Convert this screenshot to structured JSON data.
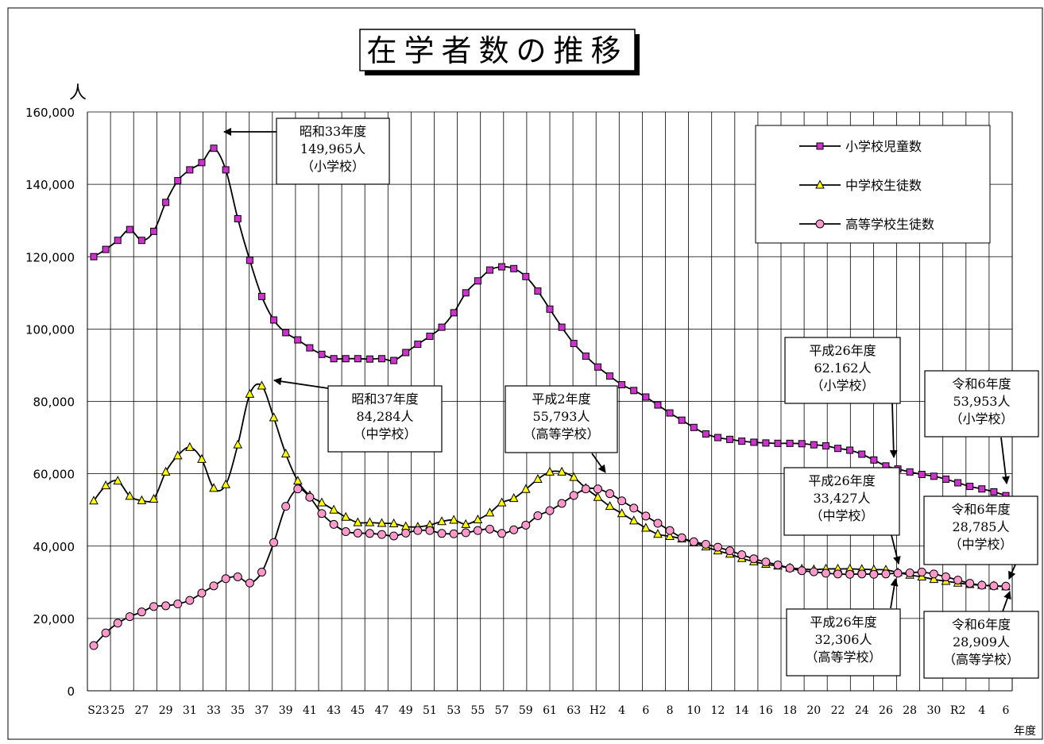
{
  "chart_data": {
    "type": "line",
    "title": "在学者数の推移",
    "ylabel": "人",
    "xlabel": "年度",
    "ylim": [
      0,
      160000
    ],
    "y_ticks": [
      0,
      20000,
      40000,
      60000,
      80000,
      100000,
      120000,
      140000,
      160000
    ],
    "y_tick_labels": [
      "0",
      "20,000",
      "40,000",
      "60,000",
      "80,000",
      "100,000",
      "120,000",
      "140,000",
      "160,000"
    ],
    "grid": true,
    "legend_position": "top-right",
    "x_tick_labels": [
      "S23",
      "25",
      "27",
      "29",
      "31",
      "33",
      "35",
      "37",
      "39",
      "41",
      "43",
      "45",
      "47",
      "49",
      "51",
      "53",
      "55",
      "57",
      "59",
      "61",
      "63",
      "H2",
      "4",
      "6",
      "8",
      "10",
      "12",
      "14",
      "16",
      "18",
      "20",
      "22",
      "24",
      "26",
      "28",
      "30",
      "R2",
      "4",
      "6"
    ],
    "x": [
      "S23",
      "S24",
      "S25",
      "S26",
      "S27",
      "S28",
      "S29",
      "S30",
      "S31",
      "S32",
      "S33",
      "S34",
      "S35",
      "S36",
      "S37",
      "S38",
      "S39",
      "S40",
      "S41",
      "S42",
      "S43",
      "S44",
      "S45",
      "S46",
      "S47",
      "S48",
      "S49",
      "S50",
      "S51",
      "S52",
      "S53",
      "S54",
      "S55",
      "S56",
      "S57",
      "S58",
      "S59",
      "S60",
      "S61",
      "S62",
      "S63",
      "H1",
      "H2",
      "H3",
      "H4",
      "H5",
      "H6",
      "H7",
      "H8",
      "H9",
      "H10",
      "H11",
      "H12",
      "H13",
      "H14",
      "H15",
      "H16",
      "H17",
      "H18",
      "H19",
      "H20",
      "H21",
      "H22",
      "H23",
      "H24",
      "H25",
      "H26",
      "H27",
      "H28",
      "H29",
      "H30",
      "R1",
      "R2",
      "R3",
      "R4",
      "R5",
      "R6"
    ],
    "series": [
      {
        "name": "小学校児童数",
        "color": "#cc33cc",
        "marker": "square",
        "values": [
          120000,
          122000,
          124500,
          127500,
          124500,
          127000,
          135000,
          141000,
          144000,
          146000,
          149965,
          144000,
          130500,
          119000,
          109000,
          102500,
          99000,
          97000,
          94800,
          93000,
          91800,
          91800,
          91800,
          91700,
          91800,
          91300,
          93500,
          95800,
          98000,
          100500,
          104500,
          110000,
          113300,
          116300,
          117200,
          116700,
          114500,
          110500,
          105500,
          100500,
          96000,
          92500,
          89500,
          87000,
          84600,
          83000,
          81200,
          79000,
          76800,
          74800,
          72800,
          71000,
          70000,
          69500,
          69000,
          68700,
          68500,
          68400,
          68400,
          68300,
          68000,
          67700,
          67000,
          66500,
          65400,
          63800,
          62162,
          61300,
          60500,
          59800,
          59300,
          58500,
          57500,
          56500,
          55800,
          55000,
          53953
        ]
      },
      {
        "name": "中学校生徒数",
        "color": "#ffff00",
        "marker": "triangle",
        "values": [
          52500,
          56700,
          58000,
          53800,
          52600,
          53000,
          60500,
          65000,
          67300,
          64000,
          56000,
          57000,
          68000,
          82000,
          84284,
          75500,
          65500,
          58000,
          54000,
          52000,
          50000,
          48000,
          46500,
          46500,
          46300,
          46200,
          45400,
          45300,
          45800,
          46800,
          47200,
          46000,
          47300,
          49200,
          52000,
          53200,
          55700,
          58500,
          60500,
          60500,
          59000,
          56000,
          53500,
          51000,
          49000,
          47000,
          45000,
          43300,
          42700,
          42000,
          41000,
          39800,
          38700,
          37800,
          36600,
          35700,
          35000,
          34500,
          34000,
          33700,
          33500,
          33700,
          33700,
          33700,
          33600,
          33500,
          33427,
          32700,
          32000,
          31500,
          30800,
          30300,
          29800,
          29400,
          29200,
          29000,
          28785
        ]
      },
      {
        "name": "高等学校生徒数",
        "color": "#ff99cc",
        "marker": "circle",
        "values": [
          12500,
          16000,
          18700,
          20500,
          21800,
          23300,
          23500,
          24000,
          25000,
          27000,
          29000,
          31000,
          31500,
          29800,
          32800,
          41000,
          51000,
          55800,
          53500,
          49000,
          46000,
          44000,
          43600,
          43500,
          43200,
          42800,
          43600,
          44300,
          44300,
          43500,
          43400,
          43700,
          44300,
          44700,
          43500,
          44500,
          45800,
          48400,
          49800,
          51800,
          54000,
          55793,
          55793,
          54500,
          52500,
          50500,
          48300,
          46300,
          44300,
          42300,
          41200,
          40500,
          39700,
          38700,
          37600,
          36500,
          35600,
          34800,
          33900,
          33200,
          32900,
          32500,
          32300,
          32200,
          32300,
          32200,
          32306,
          32500,
          32600,
          32800,
          32300,
          31500,
          30600,
          29700,
          29200,
          29000,
          28909
        ]
      }
    ],
    "annotations": [
      {
        "line1": "昭和33年度",
        "line2": "149,965人",
        "line3": "（小学校）"
      },
      {
        "line1": "昭和37年度",
        "line2": "84,284人",
        "line3": "（中学校）"
      },
      {
        "line1": "平成2年度",
        "line2": "55,793人",
        "line3": "（高等学校）"
      },
      {
        "line1": "平成26年度",
        "line2": "62.162人",
        "line3": "（小学校）"
      },
      {
        "line1": "平成26年度",
        "line2": "33,427人",
        "line3": "（中学校）"
      },
      {
        "line1": "平成26年度",
        "line2": "32,306人",
        "line3": "（高等学校）"
      },
      {
        "line1": "令和6年度",
        "line2": "53,953人",
        "line3": "（小学校）"
      },
      {
        "line1": "令和6年度",
        "line2": "28,785人",
        "line3": "（中学校）"
      },
      {
        "line1": "令和6年度",
        "line2": "28,909人",
        "line3": "（高等学校）"
      }
    ]
  }
}
